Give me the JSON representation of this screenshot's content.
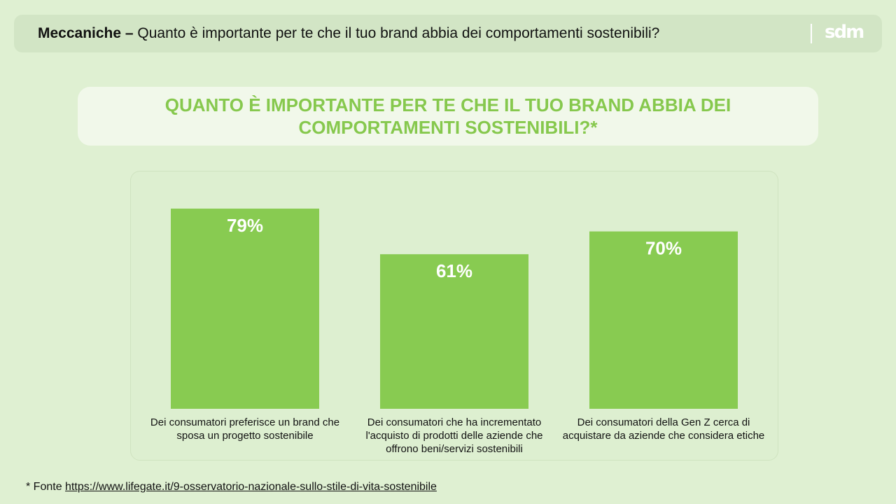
{
  "header": {
    "title_bold": "Meccaniche –",
    "title_rest": " Quanto è importante per te che il tuo brand abbia dei comportamenti sostenibili?",
    "logo": "sdm"
  },
  "banner": {
    "text": "QUANTO È IMPORTANTE PER TE CHE IL TUO BRAND ABBIA DEI COMPORTAMENTI SOSTENIBILI?*"
  },
  "chart_data": {
    "type": "bar",
    "title": "QUANTO È IMPORTANTE PER TE CHE IL TUO BRAND ABBIA DEI COMPORTAMENTI SOSTENIBILI?*",
    "categories": [
      "Dei consumatori preferisce un brand che sposa un progetto sostenibile",
      "Dei consumatori che ha incrementato l'acquisto di prodotti delle aziende che offrono beni/servizi sostenibili",
      "Dei consumatori della Gen Z cerca di acquistare da aziende che considera etiche"
    ],
    "values": [
      79,
      61,
      70
    ],
    "value_labels": [
      "79%",
      "61%",
      "70%"
    ],
    "ylim": [
      0,
      100
    ],
    "grid": false,
    "bar_color": "#88cb51",
    "label_color": "#ffffff"
  },
  "footnote": {
    "prefix": "* Fonte ",
    "link": "https://www.lifegate.it/9-osservatorio-nazionale-sullo-stile-di-vita-sostenibile"
  }
}
